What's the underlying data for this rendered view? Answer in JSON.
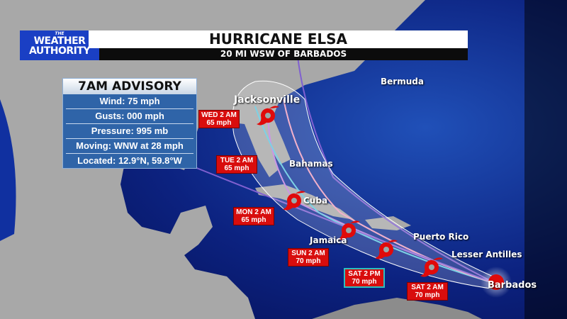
{
  "branding": {
    "logo_top": "THE",
    "logo_line1": "WEATHER",
    "logo_line2": "AUTHORITY"
  },
  "header": {
    "title": "HURRICANE ELSA",
    "subtitle": "20 MI WSW OF BARBADOS"
  },
  "advisory": {
    "title": "7AM ADVISORY",
    "rows": [
      "Wind: 75 mph",
      "Gusts: 000 mph",
      "Pressure:  995 mb",
      "Moving: WNW at 28 mph",
      "Located: 12.9°N, 59.8°W"
    ]
  },
  "forecast_points": [
    {
      "time": "WED 2 AM",
      "wind": "65 mph"
    },
    {
      "time": "TUE 2 AM",
      "wind": "65 mph"
    },
    {
      "time": "MON 2 AM",
      "wind": "65 mph"
    },
    {
      "time": "SUN 2 AM",
      "wind": "70 mph"
    },
    {
      "time": "SAT 2 PM",
      "wind": "70 mph"
    },
    {
      "time": "SAT 2 AM",
      "wind": "70 mph"
    }
  ],
  "places": [
    "Jacksonville",
    "Bermuda",
    "Bahamas",
    "Cuba",
    "Jamaica",
    "Puerto Rico",
    "Lesser Antilles",
    "Barbados"
  ],
  "colors": {
    "ocean": "#0a1a6a",
    "land": "#a8a8a8",
    "storm": "#e00a0a",
    "logo": "#1a3fc4",
    "advisory": "#2f64a8"
  },
  "icons": [
    "hurricane-icon"
  ]
}
